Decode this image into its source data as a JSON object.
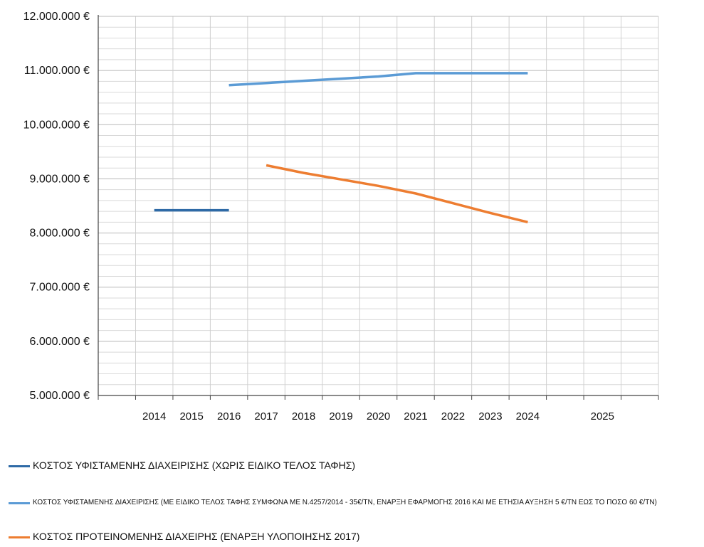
{
  "chart_data": {
    "type": "line",
    "title": "",
    "xlabel": "",
    "ylabel": "",
    "categories": [
      "",
      "2014",
      "2015",
      "2016",
      "2017",
      "2018",
      "2019",
      "2020",
      "2021",
      "2022",
      "2023",
      "2024",
      "",
      "2025",
      ""
    ],
    "ylim": [
      5000000,
      12000000
    ],
    "y_ticks": [
      5000000,
      6000000,
      7000000,
      8000000,
      9000000,
      10000000,
      11000000,
      12000000
    ],
    "y_tick_labels": [
      "5.000.000 €",
      "6.000.000 €",
      "7.000.000 €",
      "8.000.000 €",
      "9.000.000 €",
      "10.000.000 €",
      "11.000.000 €",
      "12.000.000 €"
    ],
    "grid": true,
    "legend_position": "bottom",
    "series": [
      {
        "name": "ΚΟΣΤΟΣ ΥΦΙΣΤΑΜΕΝΗΣ ΔΙΑΧΕΙΡΙΣΗΣ (ΧΩΡΙΣ ΕΙΔΙΚΟ ΤΕΛΟΣ ΤΑΦΗΣ)",
        "color": "#2e6aa6",
        "x": [
          "2014",
          "2015",
          "2016"
        ],
        "values": [
          8420000,
          8420000,
          8420000
        ]
      },
      {
        "name": "ΚΟΣΤΟΣ ΥΦΙΣΤΑΜΕΝΗΣ ΔΙΑΧΕΙΡΙΣΗΣ (ΜΕ ΕΙΔΙΚΟ ΤΕΛΟΣ ΤΑΦΗΣ ΣΥΜΦΩΝΑ ΜΕ Ν.4257/2014 - 35€/ΤΝ, ΕΝΑΡΞΗ ΕΦΑΡΜΟΓΗΣ 2016 ΚΑΙ ΜΕ ΕΤΗΣΙΑ ΑΥΞΗΣΗ 5 €/ΤΝ ΕΩΣ ΤΟ ΠΟΣΟ 60 €/ΤΝ)",
        "color": "#5b9bd5",
        "x": [
          "2016",
          "2017",
          "2018",
          "2019",
          "2020",
          "2021",
          "2022",
          "2023",
          "2024"
        ],
        "values": [
          10730000,
          10770000,
          10810000,
          10850000,
          10890000,
          10950000,
          10950000,
          10950000,
          10950000
        ]
      },
      {
        "name": "ΚΟΣΤΟΣ ΠΡΟΤΕΙΝΟΜΕΝΗΣ ΔΙΑΧΕΙΡΗΣ (ΕΝΑΡΞΗ ΥΛΟΠΟΙΗΣΗΣ 2017)",
        "color": "#ed7d31",
        "x": [
          "2017",
          "2018",
          "2019",
          "2020",
          "2021",
          "2022",
          "2023",
          "2024"
        ],
        "values": [
          9250000,
          9110000,
          8990000,
          8870000,
          8730000,
          8550000,
          8370000,
          8200000
        ]
      }
    ]
  }
}
